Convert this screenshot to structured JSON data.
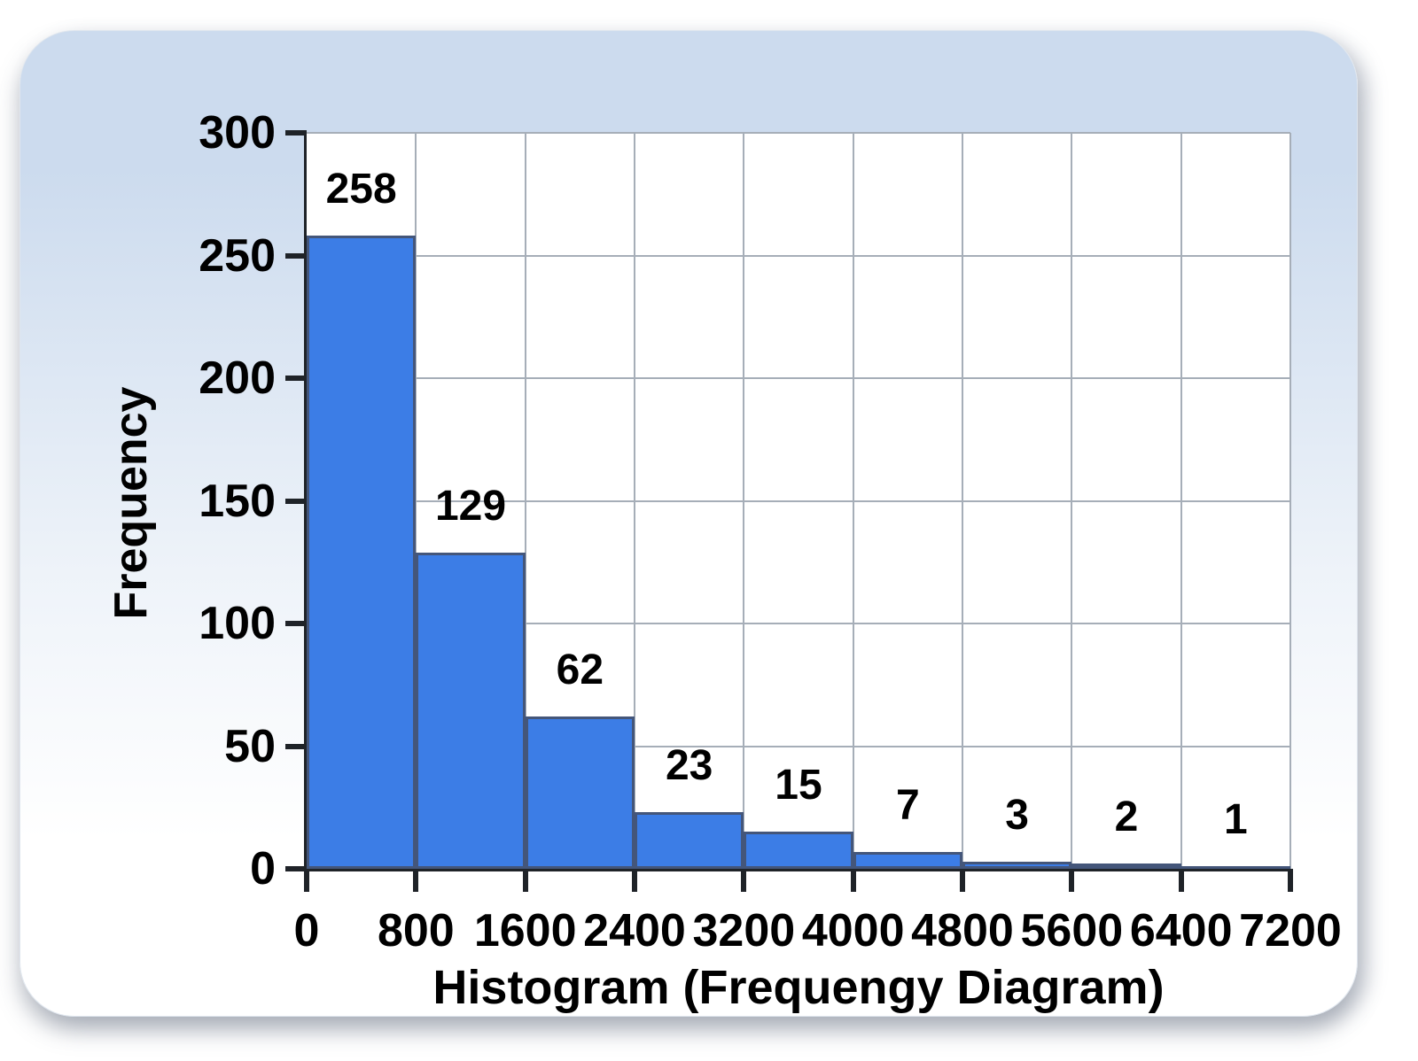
{
  "chart_data": {
    "type": "bar",
    "subtype": "histogram",
    "title": "Histogram (Frequengy Diagram)",
    "ylabel": "Frequency",
    "xlabel": "",
    "bin_edges": [
      0,
      800,
      1600,
      2400,
      3200,
      4000,
      4800,
      5600,
      6400,
      7200
    ],
    "categories": [
      "0-800",
      "800-1600",
      "1600-2400",
      "2400-3200",
      "3200-4000",
      "4000-4800",
      "4800-5600",
      "5600-6400",
      "6400-7200"
    ],
    "values": [
      258,
      129,
      62,
      23,
      15,
      7,
      3,
      2,
      1
    ],
    "data_labels": [
      "258",
      "129",
      "62",
      "23",
      "15",
      "7",
      "3",
      "2",
      "1"
    ],
    "xticks": [
      "0",
      "800",
      "1600",
      "2400",
      "3200",
      "4000",
      "4800",
      "5600",
      "6400",
      "7200"
    ],
    "yticks": [
      "0",
      "50",
      "100",
      "150",
      "200",
      "250",
      "300"
    ],
    "ylim": [
      0,
      300
    ],
    "grid": true,
    "legend": false,
    "colors": {
      "bar_fill": "#3c7de6",
      "bar_edge": "#44567a",
      "gridline": "#a6aeb8",
      "axis": "#1f2328",
      "text": "#000000",
      "plot_background": "#ffffff",
      "card_gradient_top": "#ccdbee",
      "card_gradient_mid": "#eef3f9",
      "card_gradient_bottom": "#ffffff",
      "page_background": "#ffffff"
    }
  }
}
